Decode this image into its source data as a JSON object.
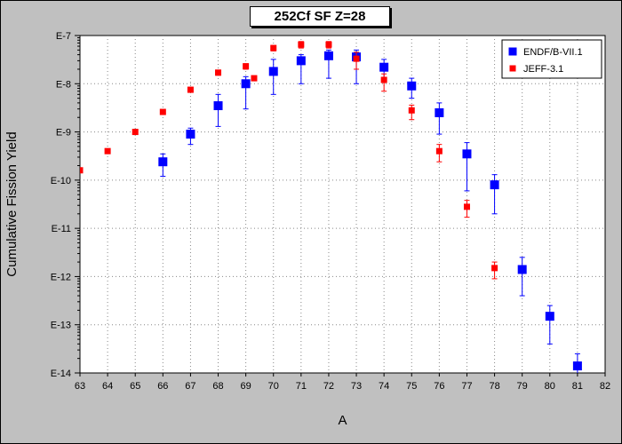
{
  "chart_data": {
    "type": "scatter",
    "title": "252Cf SF Z=28",
    "xlabel": "A",
    "ylabel": "Cumulative Fission Yield",
    "xlim": [
      63,
      82
    ],
    "ylim": [
      1e-14,
      1e-07
    ],
    "y_scale": "log",
    "grid": true,
    "legend_position": "top-right",
    "x_ticks": [
      "63",
      "64",
      "65",
      "66",
      "67",
      "68",
      "69",
      "70",
      "71",
      "72",
      "73",
      "74",
      "75",
      "76",
      "77",
      "78",
      "79",
      "80",
      "81",
      "82"
    ],
    "y_ticks": [
      "E-7",
      "E-8",
      "E-9",
      "E-10",
      "E-11",
      "E-12",
      "E-13",
      "E-14"
    ],
    "series": [
      {
        "name": "ENDF/B-VII.1",
        "color": "#0000ff",
        "marker": "square",
        "points": [
          {
            "x": 66,
            "y": 2.4e-10,
            "lo": 1.2e-10,
            "hi": 3.5e-10
          },
          {
            "x": 67,
            "y": 9e-10,
            "lo": 5.5e-10,
            "hi": 1.2e-09
          },
          {
            "x": 68,
            "y": 3.5e-09,
            "lo": 1.3e-09,
            "hi": 6e-09
          },
          {
            "x": 69,
            "y": 1e-08,
            "lo": 3e-09,
            "hi": 1.4e-08
          },
          {
            "x": 70,
            "y": 1.8e-08,
            "lo": 6e-09,
            "hi": 3.2e-08
          },
          {
            "x": 71,
            "y": 3e-08,
            "lo": 1e-08,
            "hi": 4e-08
          },
          {
            "x": 72,
            "y": 3.8e-08,
            "lo": 1.3e-08,
            "hi": 5e-08
          },
          {
            "x": 73,
            "y": 3.6e-08,
            "lo": 1e-08,
            "hi": 5e-08
          },
          {
            "x": 74,
            "y": 2.2e-08,
            "lo": 1.2e-08,
            "hi": 3.2e-08
          },
          {
            "x": 75,
            "y": 9e-09,
            "lo": 5e-09,
            "hi": 1.3e-08
          },
          {
            "x": 76,
            "y": 2.5e-09,
            "lo": 9e-10,
            "hi": 4e-09
          },
          {
            "x": 77,
            "y": 3.5e-10,
            "lo": 6e-11,
            "hi": 6e-10
          },
          {
            "x": 78,
            "y": 8e-11,
            "lo": 2e-11,
            "hi": 1.3e-10
          },
          {
            "x": 79,
            "y": 1.4e-12,
            "lo": 4e-13,
            "hi": 2.5e-12
          },
          {
            "x": 80,
            "y": 1.5e-13,
            "lo": 4e-14,
            "hi": 2.5e-13
          },
          {
            "x": 81,
            "y": 1.4e-14,
            "lo": 3e-15,
            "hi": 2.5e-14
          }
        ]
      },
      {
        "name": "JEFF-3.1",
        "color": "#ff0000",
        "marker": "square",
        "points": [
          {
            "x": 63,
            "y": 1.6e-10
          },
          {
            "x": 64,
            "y": 4e-10
          },
          {
            "x": 65,
            "y": 1e-09,
            "lo": 9e-10,
            "hi": 1.1e-09
          },
          {
            "x": 66,
            "y": 2.6e-09,
            "lo": 2.4e-09,
            "hi": 2.8e-09
          },
          {
            "x": 67,
            "y": 7.5e-09,
            "lo": 7e-09,
            "hi": 8e-09
          },
          {
            "x": 68,
            "y": 1.7e-08,
            "lo": 1.5e-08,
            "hi": 1.9e-08
          },
          {
            "x": 69,
            "y": 2.3e-08,
            "lo": 2e-08,
            "hi": 2.6e-08
          },
          {
            "x": 69.3,
            "y": 1.3e-08,
            "lo": 1.2e-08,
            "hi": 1.4e-08
          },
          {
            "x": 70,
            "y": 5.5e-08,
            "lo": 4.8e-08,
            "hi": 6.2e-08
          },
          {
            "x": 71,
            "y": 6.5e-08,
            "lo": 5.5e-08,
            "hi": 7.5e-08
          },
          {
            "x": 72,
            "y": 6.5e-08,
            "lo": 5.5e-08,
            "hi": 7.5e-08
          },
          {
            "x": 73,
            "y": 3.3e-08,
            "lo": 2e-08,
            "hi": 4.5e-08
          },
          {
            "x": 74,
            "y": 1.2e-08,
            "lo": 7e-09,
            "hi": 1.6e-08
          },
          {
            "x": 75,
            "y": 2.8e-09,
            "lo": 1.8e-09,
            "hi": 3.6e-09
          },
          {
            "x": 76,
            "y": 4e-10,
            "lo": 2.4e-10,
            "hi": 5.5e-10
          },
          {
            "x": 77,
            "y": 2.8e-11,
            "lo": 1.7e-11,
            "hi": 3.8e-11
          },
          {
            "x": 78,
            "y": 1.5e-12,
            "lo": 9e-13,
            "hi": 2e-12
          }
        ]
      }
    ]
  }
}
